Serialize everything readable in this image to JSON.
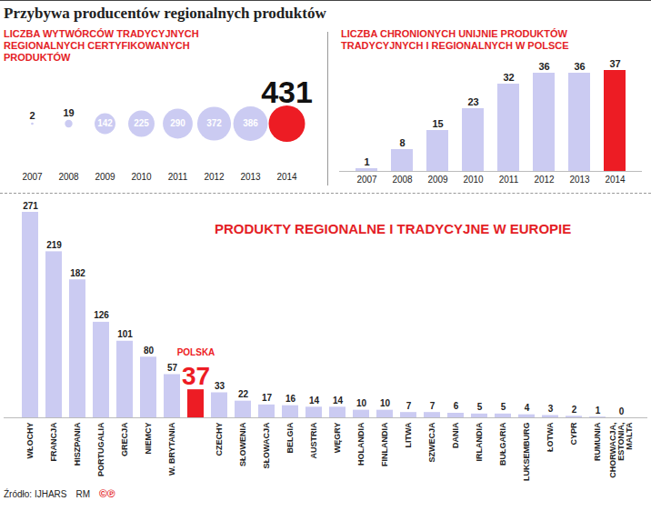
{
  "title": "Przybywa producentów regionalnych produktów",
  "source": "Źródło: IJHARS",
  "credits": [
    "RM",
    "©℗"
  ],
  "chart_data": [
    {
      "type": "bubble",
      "title": "LICZBA WYTWÓRCÓW TRADYCYJNYCH REGIONALNYCH CERTYFIKOWANYCH PRODUKTÓW",
      "categories": [
        "2007",
        "2008",
        "2009",
        "2010",
        "2011",
        "2012",
        "2013",
        "2014"
      ],
      "values": [
        2,
        19,
        142,
        225,
        290,
        372,
        386,
        431
      ],
      "colors": [
        "#cbcbf2",
        "#cbcbf2",
        "#cbcbf2",
        "#cbcbf2",
        "#cbcbf2",
        "#cbcbf2",
        "#cbcbf2",
        "#ed1c24"
      ],
      "data_labels": true,
      "tick_labels": "x"
    },
    {
      "type": "bar",
      "title": "LICZBA CHRONIONYCH UNIJNIE PRODUKTÓW TRADYCYJNYCH I REGIONALNYCH W POLSCE",
      "categories": [
        "2007",
        "2008",
        "2009",
        "2010",
        "2011",
        "2012",
        "2013",
        "2014"
      ],
      "values": [
        1,
        8,
        15,
        23,
        32,
        36,
        36,
        37
      ],
      "colors": [
        "#cbcbf2",
        "#cbcbf2",
        "#cbcbf2",
        "#cbcbf2",
        "#cbcbf2",
        "#cbcbf2",
        "#cbcbf2",
        "#ed1c24"
      ],
      "ylim": [
        0,
        37
      ],
      "yticks": [],
      "data_labels": true,
      "tick_labels": "x"
    },
    {
      "type": "bar",
      "title": "PRODUKTY REGIONALNE I TRADYCYJNE W EUROPIE",
      "categories": [
        "WŁOCHY",
        "FRANCJA",
        "HISZPANIA",
        "PORTUGALIA",
        "GRECJA",
        "NIEMCY",
        "W. BRYTANIA",
        "POLSKA",
        "CZECHY",
        "SŁOWENIA",
        "SŁOWACJA",
        "BELGIA",
        "AUSTRIA",
        "WĘGRY",
        "HOLANDIA",
        "FINLANDIA",
        "LITWA",
        "SZWECJA",
        "DANIA",
        "IRLANDIA",
        "BUŁGARIA",
        "LUKSEMBURG",
        "ŁOTWA",
        "CYPR",
        "RUMUNIA",
        "CHORWACJA,\nESTONIA,\nMALTA"
      ],
      "values": [
        271,
        219,
        182,
        126,
        101,
        80,
        57,
        37,
        33,
        22,
        17,
        16,
        14,
        14,
        10,
        10,
        7,
        7,
        6,
        5,
        5,
        4,
        3,
        2,
        1,
        0
      ],
      "colors": [
        "#cbcbf2",
        "#cbcbf2",
        "#cbcbf2",
        "#cbcbf2",
        "#cbcbf2",
        "#cbcbf2",
        "#cbcbf2",
        "#ed1c24",
        "#cbcbf2",
        "#cbcbf2",
        "#cbcbf2",
        "#cbcbf2",
        "#cbcbf2",
        "#cbcbf2",
        "#cbcbf2",
        "#cbcbf2",
        "#cbcbf2",
        "#cbcbf2",
        "#cbcbf2",
        "#cbcbf2",
        "#cbcbf2",
        "#cbcbf2",
        "#cbcbf2",
        "#cbcbf2",
        "#cbcbf2",
        "#cbcbf2"
      ],
      "ylim": [
        0,
        271
      ],
      "yticks": [],
      "data_labels": true,
      "tick_labels": "x"
    }
  ]
}
